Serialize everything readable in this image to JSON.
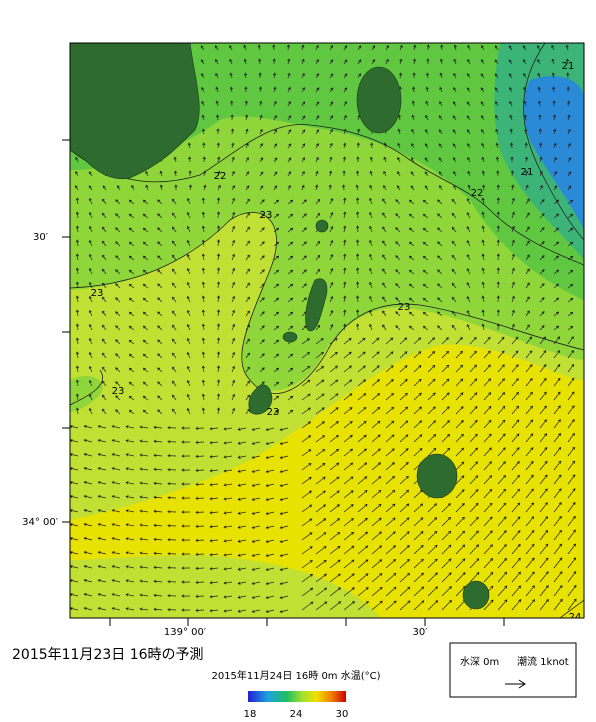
{
  "map": {
    "title": "2015年11月23日  16時の予測",
    "subtitle": "2015年11月24日 16時 0m 水温(°C)",
    "lat_labels": [
      "30′",
      "34° 00′"
    ],
    "lon_labels": [
      "139° 00′",
      "30′"
    ],
    "contour_labels": [
      "21",
      "21",
      "22",
      "22",
      "23",
      "23",
      "23",
      "23",
      "23",
      "24"
    ],
    "colorbar": {
      "ticks": [
        18,
        24,
        30
      ]
    },
    "legend": {
      "depth": "水深 0m",
      "current": "潮流 1knot"
    }
  }
}
